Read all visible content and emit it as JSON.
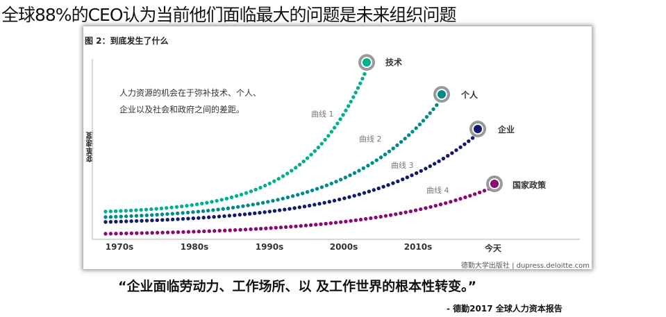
{
  "headline": "全球88%的CEO认为当前他们面临最大的问题是未来组织问题",
  "figure": {
    "title": "图 2：到底发生了什么",
    "note_lines": [
      "人力资源的机会在于弥补技术、个人、",
      "企业以及社会和政府之间的差距。"
    ],
    "source": "德勤大学出版社 | dupress.deloitte.com"
  },
  "chart_data": {
    "type": "line",
    "ylabel": "变革速度",
    "x_ticks": [
      "1970s",
      "1980s",
      "1990s",
      "2000s",
      "2010s",
      "今天"
    ],
    "y_ticks": [],
    "grid": false,
    "series": [
      {
        "name": "技术",
        "curve_label": "曲线 1",
        "color": "#00b08f"
      },
      {
        "name": "个人",
        "curve_label": "曲线 2",
        "color": "#008a8a"
      },
      {
        "name": "企业",
        "curve_label": "曲线 3",
        "color": "#141a6b"
      },
      {
        "name": "国家政策",
        "curve_label": "曲线 4",
        "color": "#8a0a73"
      }
    ]
  },
  "quote": "“企业面临劳动力、工作场所、以 及工作世界的根本性转变。”",
  "attribution": "- 德勤2017 全球人力资本报告"
}
